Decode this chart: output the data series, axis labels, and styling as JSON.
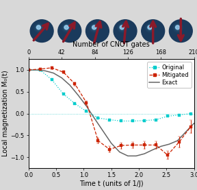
{
  "top_panel_bg": "#8b9ea8",
  "bottom_panel_bg": "#ffffff",
  "fig_bg": "#d8d8d8",
  "top_axis_label": "Number of CNOT gates",
  "top_ticks": [
    0,
    42,
    84,
    126,
    168,
    210
  ],
  "bottom_xlabel": "Time t (units of 1/J)",
  "bottom_ylabel": "Local magnetization M₀(t)",
  "xlim": [
    0.0,
    3.0
  ],
  "ylim": [
    -1.25,
    1.25
  ],
  "yticks": [
    -1.0,
    -0.5,
    0.0,
    0.5,
    1.0
  ],
  "xticks": [
    0.0,
    0.5,
    1.0,
    1.5,
    2.0,
    2.5,
    3.0
  ],
  "original_x": [
    0.0,
    0.21,
    0.42,
    0.63,
    0.84,
    1.05,
    1.26,
    1.47,
    1.68,
    1.89,
    2.1,
    2.31,
    2.52,
    2.73,
    2.94
  ],
  "original_y": [
    1.0,
    1.0,
    0.78,
    0.45,
    0.23,
    0.05,
    -0.1,
    -0.14,
    -0.17,
    -0.17,
    -0.16,
    -0.14,
    -0.06,
    -0.03,
    0.0
  ],
  "mitigated_x": [
    0.0,
    0.21,
    0.42,
    0.63,
    0.84,
    1.05,
    1.26,
    1.47,
    1.68,
    1.89,
    2.1,
    2.31,
    2.52,
    2.73,
    2.94
  ],
  "mitigated_y": [
    1.0,
    1.02,
    1.05,
    0.95,
    0.68,
    0.25,
    -0.62,
    -0.82,
    -0.73,
    -0.72,
    -0.72,
    -0.72,
    -0.95,
    -0.65,
    -0.3
  ],
  "mitigated_yerr": [
    0.02,
    0.02,
    0.03,
    0.03,
    0.04,
    0.05,
    0.06,
    0.07,
    0.07,
    0.07,
    0.08,
    0.08,
    0.1,
    0.12,
    0.15
  ],
  "exact_x": [
    0.0,
    0.15,
    0.3,
    0.45,
    0.6,
    0.75,
    0.9,
    1.05,
    1.2,
    1.35,
    1.5,
    1.65,
    1.8,
    1.95,
    2.1,
    2.25,
    2.4,
    2.55,
    2.7,
    2.85,
    3.0
  ],
  "exact_y": [
    1.0,
    1.0,
    0.98,
    0.93,
    0.82,
    0.65,
    0.42,
    0.17,
    -0.12,
    -0.4,
    -0.68,
    -0.88,
    -0.97,
    -0.97,
    -0.92,
    -0.83,
    -0.75,
    -0.7,
    -0.62,
    -0.42,
    -0.22
  ],
  "original_color": "#00cccc",
  "mitigated_color": "#cc2200",
  "exact_color": "#666666",
  "legend_fontsize": 6.0,
  "tick_fontsize": 6,
  "label_fontsize": 7,
  "arrow_angles": [
    50,
    60,
    75,
    85,
    90,
    -90
  ],
  "arrow_color": "#8b1a2a",
  "sphere_color": "#1a3a5c",
  "sphere_highlight": "#4488bb"
}
